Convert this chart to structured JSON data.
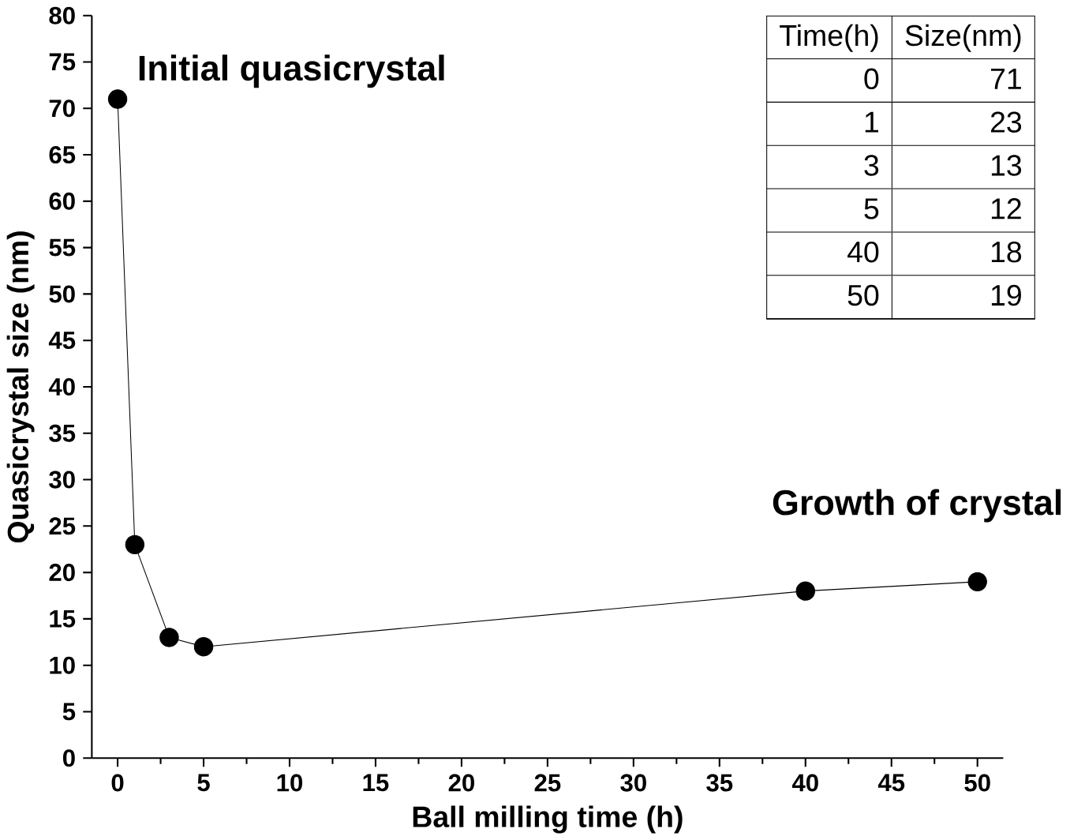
{
  "chart_data": {
    "type": "line",
    "xlabel": "Ball milling time (h)",
    "ylabel": "Quasicrystal size (nm)",
    "x": [
      0,
      1,
      3,
      5,
      40,
      50
    ],
    "series": [
      {
        "color": "#000000",
        "values": [
          71,
          23,
          13,
          12,
          18,
          19
        ]
      }
    ],
    "xlim": [
      -1.5,
      51.5
    ],
    "xticks": [
      0,
      5,
      10,
      15,
      20,
      25,
      30,
      35,
      40,
      45,
      50
    ],
    "ylim": [
      0,
      80
    ],
    "yticks": [
      0,
      5,
      10,
      15,
      20,
      25,
      30,
      35,
      40,
      45,
      50,
      55,
      60,
      65,
      70,
      75,
      80
    ],
    "marker": "circle",
    "line_style": "solid",
    "annotations": [
      {
        "text": "Initial quasicrystal",
        "x": 0,
        "y": 71
      },
      {
        "text": "Growth of crystal",
        "x": 40,
        "y": 18
      },
      "Time(h)",
      "Size(nm)",
      "0",
      "71",
      "1",
      "23",
      "3",
      "13",
      "5",
      "12",
      "40",
      "18",
      "50",
      "19"
    ]
  }
}
